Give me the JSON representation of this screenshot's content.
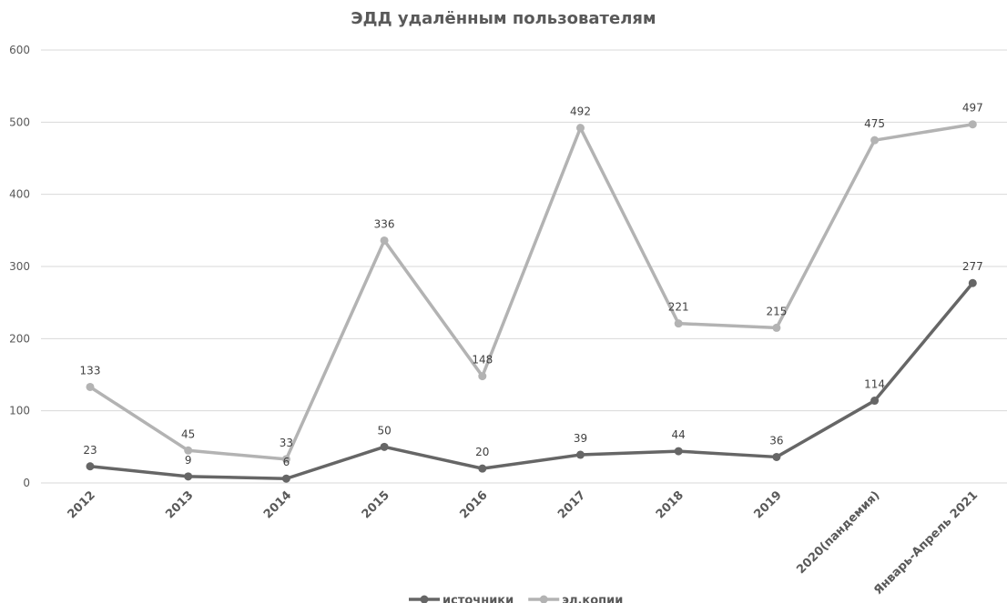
{
  "chart_data": {
    "type": "line",
    "title": "ЭДД удалённым пользователям",
    "categories": [
      "2012",
      "2013",
      "2014",
      "2015",
      "2016",
      "2017",
      "2018",
      "2019",
      "2020(пандемия)",
      "Январь-Апрель 2021"
    ],
    "series": [
      {
        "name": "источники",
        "color": "#666666",
        "values": [
          23,
          9,
          6,
          50,
          20,
          39,
          44,
          36,
          114,
          277
        ]
      },
      {
        "name": "эл.копии",
        "color": "#b3b3b3",
        "values": [
          133,
          45,
          33,
          336,
          148,
          492,
          221,
          215,
          475,
          497
        ]
      }
    ],
    "yticks": [
      "0",
      "100",
      "200",
      "300",
      "400",
      "500",
      "600"
    ],
    "ylim": [
      0,
      600
    ],
    "grid": true,
    "legend": "bottom",
    "xlabel": "",
    "ylabel": ""
  }
}
